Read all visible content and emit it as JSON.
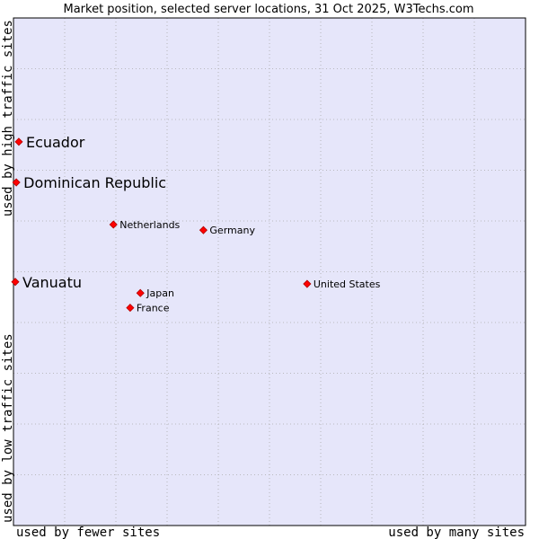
{
  "chart_data": {
    "type": "scatter",
    "title": "Market position, selected server locations, 31 Oct 2025, W3Techs.com",
    "xlabel_left": "used by fewer sites",
    "xlabel_right": "used by many sites",
    "ylabel_bottom": "used by low traffic sites",
    "ylabel_top": "used by high traffic sites",
    "xlim": [
      0,
      100
    ],
    "ylim": [
      0,
      100
    ],
    "grid": true,
    "colors": {
      "plot_bg": "#e6e6fa",
      "grid": "#aaaaaa",
      "marker": "#ff0000",
      "marker_edge": "#b00000"
    },
    "points": [
      {
        "name": "Ecuador",
        "x": 0.7,
        "y": 75.6,
        "size": "large"
      },
      {
        "name": "Dominican Republic",
        "x": 0.2,
        "y": 67.6,
        "size": "large"
      },
      {
        "name": "Netherlands",
        "x": 19.3,
        "y": 59.3,
        "size": "small"
      },
      {
        "name": "Germany",
        "x": 37.0,
        "y": 58.2,
        "size": "small"
      },
      {
        "name": "Vanuatu",
        "x": 0.0,
        "y": 48.0,
        "size": "large"
      },
      {
        "name": "United States",
        "x": 57.4,
        "y": 47.6,
        "size": "small"
      },
      {
        "name": "Japan",
        "x": 24.6,
        "y": 45.8,
        "size": "small"
      },
      {
        "name": "France",
        "x": 22.6,
        "y": 42.9,
        "size": "small"
      }
    ]
  }
}
